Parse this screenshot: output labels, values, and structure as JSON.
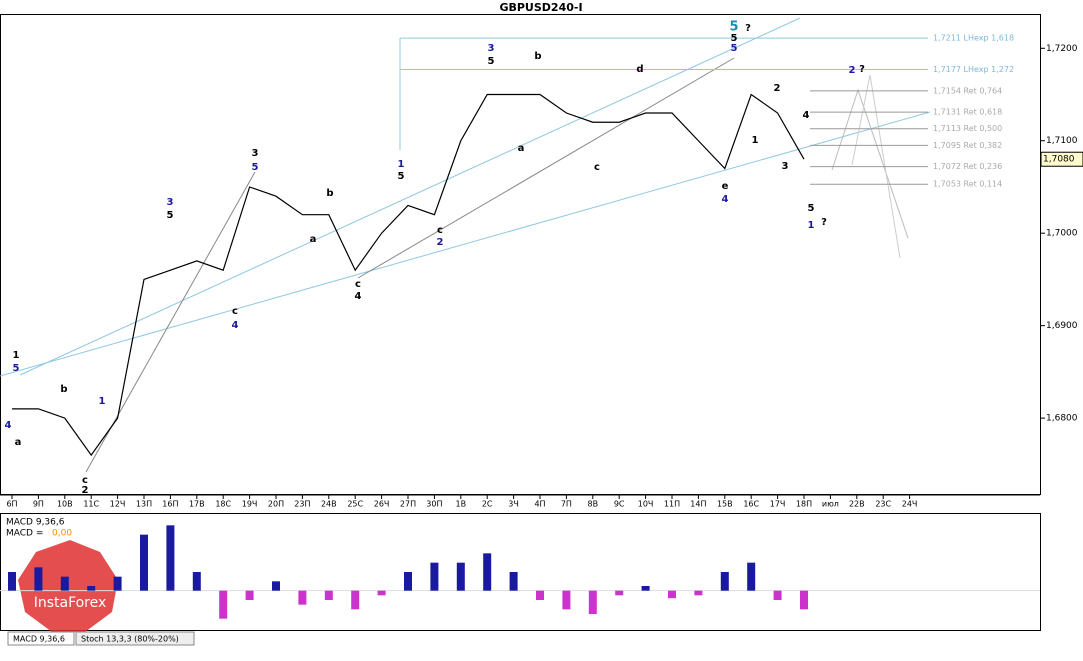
{
  "chart_data": [
    {
      "type": "line",
      "title": "GBPUSD240-I",
      "categories": [
        "6П",
        "9П",
        "10В",
        "11С",
        "12Ч",
        "13П",
        "16П",
        "17В",
        "18С",
        "19Ч",
        "20П",
        "23П",
        "24В",
        "25С",
        "26Ч",
        "27П",
        "30П",
        "1В",
        "2С",
        "3Ч",
        "4П",
        "7П",
        "8В",
        "9С",
        "10Ч",
        "11П",
        "14П",
        "15В",
        "16С",
        "17Ч",
        "18П",
        "июл",
        "22В",
        "23С",
        "24Ч"
      ],
      "series": [
        {
          "name": "GBPUSD240-I",
          "color": "#000000",
          "values": [
            1.681,
            1.681,
            1.68,
            1.676,
            1.68,
            1.695,
            1.696,
            1.697,
            1.696,
            1.705,
            1.704,
            1.702,
            1.702,
            1.696,
            1.7,
            1.703,
            1.702,
            1.71,
            1.715,
            1.715,
            1.715,
            1.713,
            1.712,
            1.712,
            1.713,
            1.713,
            1.71,
            1.707,
            1.715,
            1.713,
            1.708,
            null,
            null,
            null,
            null
          ]
        }
      ],
      "ylim": [
        1.6719,
        1.7236
      ],
      "yticks": [
        {
          "value": 1.68,
          "label": "1,6800"
        },
        {
          "value": 1.69,
          "label": "1,6900"
        },
        {
          "value": 1.7,
          "label": "1,7000"
        },
        {
          "value": 1.71,
          "label": "1,7100"
        },
        {
          "value": 1.72,
          "label": "1,7200"
        }
      ],
      "last_price": {
        "value": 1.708,
        "label": "1,7080"
      },
      "levels": [
        {
          "value": 1.7211,
          "label": "1,7211 LHexp 1,618"
        },
        {
          "value": 1.7177,
          "label": "1,7177 LHexp 1,272"
        },
        {
          "value": 1.7154,
          "label": "1,7154 Ret 0,764"
        },
        {
          "value": 1.7131,
          "label": "1,7131 Ret 0,618"
        },
        {
          "value": 1.7113,
          "label": "1,7113 Ret 0,500"
        },
        {
          "value": 1.7095,
          "label": "1,7095 Ret 0,382"
        },
        {
          "value": 1.7072,
          "label": "1,7072 Ret 0,236"
        },
        {
          "value": 1.7053,
          "label": "1,7053 Ret 0,114"
        }
      ],
      "wave_labels": [
        {
          "text": "1",
          "color": "#000000"
        },
        {
          "text": "5",
          "color": "#1a1aa0"
        },
        {
          "text": "4",
          "color": "#1a1aa0"
        },
        {
          "text": "a",
          "color": "#000000"
        },
        {
          "text": "b",
          "color": "#000000"
        },
        {
          "text": "c",
          "color": "#000000"
        },
        {
          "text": "2",
          "color": "#000000"
        },
        {
          "text": "1",
          "color": "#1a1aa0"
        },
        {
          "text": "3",
          "color": "#1a1aa0"
        },
        {
          "text": "5",
          "color": "#000000"
        },
        {
          "text": "3",
          "color": "#000000"
        },
        {
          "text": "5",
          "color": "#1a1aa0"
        },
        {
          "text": "c",
          "color": "#000000"
        },
        {
          "text": "4",
          "color": "#1a1aa0"
        },
        {
          "text": "b",
          "color": "#000000"
        },
        {
          "text": "a",
          "color": "#000000"
        },
        {
          "text": "c",
          "color": "#000000"
        },
        {
          "text": "4",
          "color": "#000000"
        },
        {
          "text": "1",
          "color": "#1a1aa0"
        },
        {
          "text": "5",
          "color": "#000000"
        },
        {
          "text": "c",
          "color": "#000000"
        },
        {
          "text": "2",
          "color": "#1a1aa0"
        },
        {
          "text": "3",
          "color": "#1a1aa0"
        },
        {
          "text": "5",
          "color": "#000000"
        },
        {
          "text": "b",
          "color": "#000000"
        },
        {
          "text": "a",
          "color": "#000000"
        },
        {
          "text": "d",
          "color": "#000000"
        },
        {
          "text": "c",
          "color": "#000000"
        },
        {
          "text": "5",
          "color": "#1a8fb0"
        },
        {
          "text": "?",
          "color": "#000000"
        },
        {
          "text": "5",
          "color": "#000000"
        },
        {
          "text": "5",
          "color": "#1a1aa0"
        },
        {
          "text": "e",
          "color": "#000000"
        },
        {
          "text": "4",
          "color": "#1a1aa0"
        },
        {
          "text": "2",
          "color": "#000000"
        },
        {
          "text": "1",
          "color": "#000000"
        },
        {
          "text": "3",
          "color": "#000000"
        },
        {
          "text": "4",
          "color": "#000000"
        },
        {
          "text": "5",
          "color": "#000000"
        },
        {
          "text": "1",
          "color": "#1a1aa0"
        },
        {
          "text": "?",
          "color": "#000000"
        },
        {
          "text": "2",
          "color": "#1a1aa0"
        },
        {
          "text": "?",
          "color": "#000000"
        }
      ]
    },
    {
      "type": "bar",
      "title": "MACD 9,36,6",
      "subtitle": "MACD =",
      "signal_label": "0,00",
      "values": [
        20,
        25,
        15,
        5,
        15,
        60,
        70,
        20,
        -30,
        -10,
        10,
        -15,
        -10,
        -20,
        -5,
        20,
        30,
        30,
        40,
        20,
        -10,
        -20,
        -25,
        -5,
        5,
        -8,
        -5,
        20,
        30,
        -10,
        -20,
        null,
        null,
        null,
        null
      ],
      "ylim": [
        -40,
        80
      ],
      "up_color": "#1a1aa0",
      "down_color": "#cc33cc",
      "tabs": [
        "MACD 9,36,6",
        "Stoch 13,3,3 (80%-20%)"
      ],
      "watermark": "InstaForex"
    }
  ]
}
